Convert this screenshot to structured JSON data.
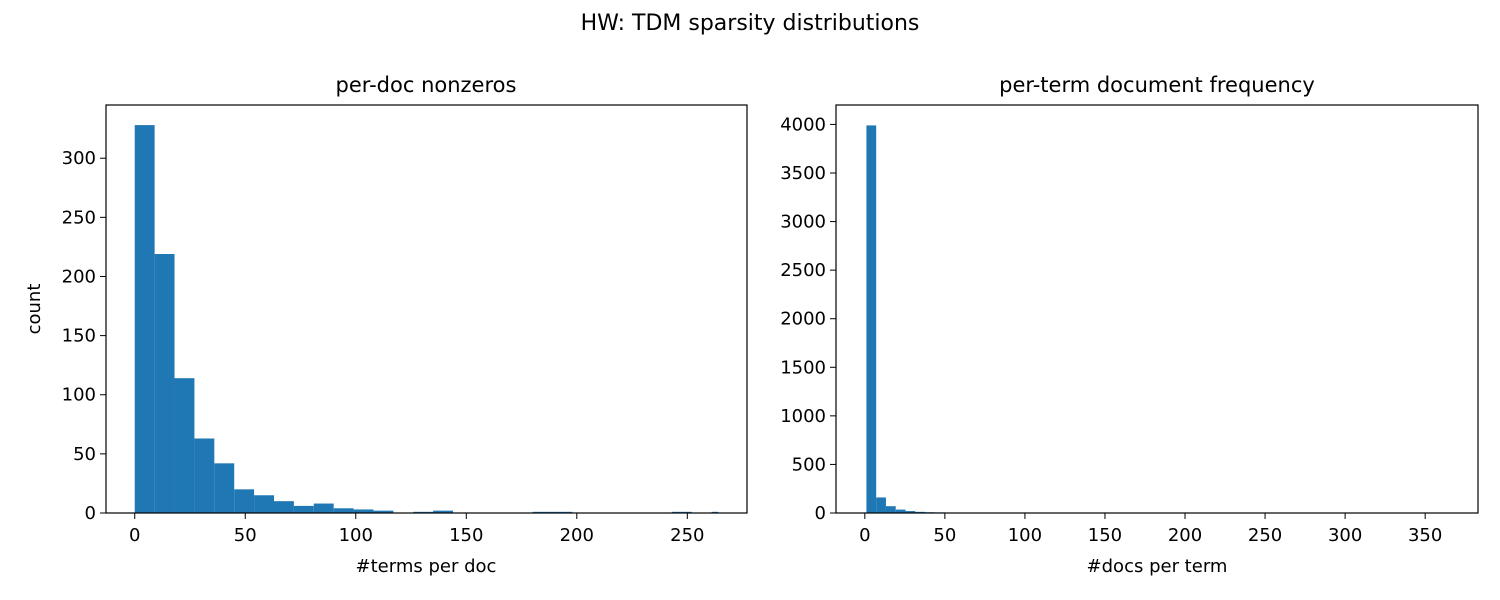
{
  "figure": {
    "suptitle": "HW: TDM sparsity distributions"
  },
  "chart_data": [
    {
      "type": "bar",
      "title": "per-doc nonzeros",
      "xlabel": "#terms per doc",
      "ylabel": "count",
      "xlim": [
        -13,
        277
      ],
      "ylim": [
        0,
        345
      ],
      "xticks": [
        0,
        50,
        100,
        150,
        200,
        250
      ],
      "yticks": [
        0,
        50,
        100,
        150,
        200,
        250,
        300
      ],
      "bin_edges": [
        0,
        9,
        18,
        27,
        36,
        45,
        54,
        63,
        72,
        81,
        90,
        99,
        108,
        117,
        126,
        135,
        144,
        153,
        162,
        171,
        180,
        189,
        198,
        207,
        216,
        225,
        234,
        243,
        252,
        261,
        264
      ],
      "values": [
        328,
        219,
        114,
        63,
        42,
        20,
        15,
        10,
        6,
        8,
        4,
        3,
        2,
        0,
        1,
        2,
        0,
        0,
        0,
        0,
        1,
        1,
        0,
        0,
        0,
        0,
        0,
        1,
        0,
        1
      ],
      "color": "#1f77b4",
      "grid": false,
      "legend": "none"
    },
    {
      "type": "bar",
      "title": "per-term document frequency",
      "xlabel": "#docs per term",
      "ylabel": "",
      "xlim": [
        -18,
        383
      ],
      "ylim": [
        0,
        4200
      ],
      "xticks": [
        0,
        50,
        100,
        150,
        200,
        250,
        300,
        350
      ],
      "yticks": [
        0,
        500,
        1000,
        1500,
        2000,
        2500,
        3000,
        3500,
        4000
      ],
      "bin_edges": [
        1,
        7.1,
        13.2,
        19.3,
        25.4,
        31.5,
        37.6,
        43.7,
        49.8,
        55.9,
        62,
        68.1,
        74.2,
        80.3,
        86.4,
        92.5,
        98.6,
        104.7,
        110.8,
        116.9,
        123,
        129.1,
        135.2,
        141.3,
        147.4,
        153.5,
        159.6,
        165.7,
        171.8,
        177.9,
        184,
        190.1,
        196.2,
        202.3,
        208.4,
        214.5,
        220.6,
        226.7,
        232.8,
        238.9,
        245,
        251.1,
        257.2,
        263.3,
        269.4,
        275.5,
        281.6,
        287.7,
        293.8,
        299.9,
        306,
        312.1,
        318.2,
        324.3,
        330.4,
        336.5,
        342.6,
        348.7,
        354.8,
        360.9,
        367
      ],
      "values": [
        3990,
        160,
        70,
        35,
        20,
        12,
        8,
        6,
        5,
        4,
        3,
        3,
        2,
        2,
        2,
        2,
        1,
        1,
        1,
        1,
        1,
        1,
        1,
        1,
        1,
        1,
        0,
        1,
        0,
        1,
        0,
        1,
        0,
        1,
        0,
        1,
        0,
        0,
        1,
        0,
        1,
        0,
        0,
        0,
        1,
        0,
        0,
        0,
        0,
        1,
        0,
        0,
        0,
        0,
        0,
        0,
        0,
        0,
        0,
        1
      ],
      "color": "#1f77b4",
      "grid": false,
      "legend": "none"
    }
  ]
}
